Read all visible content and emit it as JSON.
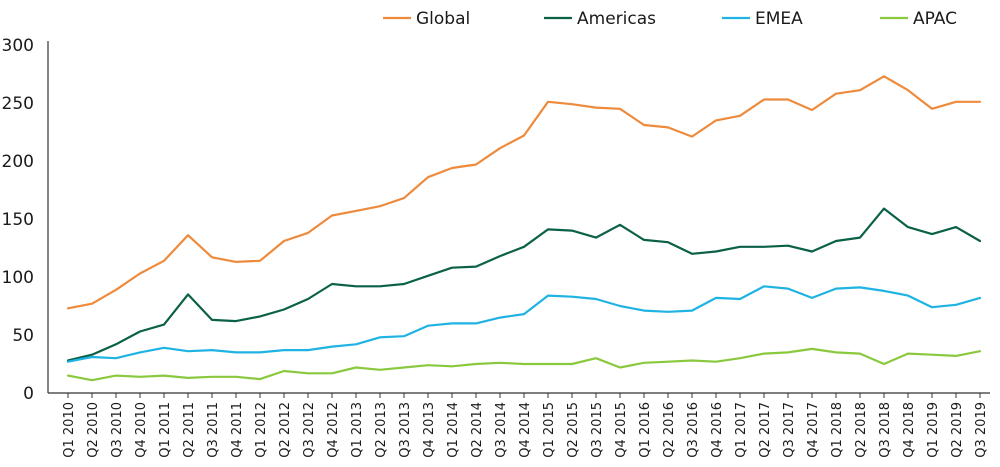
{
  "chart_data": {
    "type": "line",
    "title": "",
    "xlabel": "",
    "ylabel": "",
    "ylim": [
      0,
      300
    ],
    "yticks": [
      0,
      50,
      100,
      150,
      200,
      250,
      300
    ],
    "grid": false,
    "legend_position": "top",
    "categories": [
      "Q1 2010",
      "Q2 2010",
      "Q3 2010",
      "Q4 2010",
      "Q1 2011",
      "Q2 2011",
      "Q3 2011",
      "Q4 2011",
      "Q1 2012",
      "Q2 2012",
      "Q3 2012",
      "Q4 2012",
      "Q1 2013",
      "Q2 2013",
      "Q3 2013",
      "Q4 2013",
      "Q1 2014",
      "Q2 2014",
      "Q3 2014",
      "Q4 2014",
      "Q1 2015",
      "Q2 2015",
      "Q3 2015",
      "Q4 2015",
      "Q1 2016",
      "Q2 2016",
      "Q3 2016",
      "Q4 2016",
      "Q1 2017",
      "Q2 2017",
      "Q3 2017",
      "Q4 2017",
      "Q1 2018",
      "Q2 2018",
      "Q3 2018",
      "Q4 2018",
      "Q1 2019",
      "Q2 2019",
      "Q3 2019"
    ],
    "series": [
      {
        "name": "Global",
        "color": "#ee8a3c",
        "values": [
          73,
          77,
          89,
          103,
          114,
          136,
          117,
          113,
          114,
          131,
          138,
          153,
          157,
          161,
          168,
          186,
          194,
          197,
          211,
          222,
          251,
          249,
          246,
          245,
          231,
          229,
          221,
          235,
          239,
          253,
          253,
          244,
          258,
          261,
          273,
          261,
          245,
          251,
          251
        ]
      },
      {
        "name": "Americas",
        "color": "#0b6148",
        "values": [
          28,
          33,
          42,
          53,
          59,
          85,
          63,
          62,
          66,
          72,
          81,
          94,
          92,
          92,
          94,
          101,
          108,
          109,
          118,
          126,
          141,
          140,
          134,
          145,
          132,
          130,
          120,
          122,
          126,
          126,
          127,
          122,
          131,
          134,
          159,
          143,
          137,
          143,
          131
        ]
      },
      {
        "name": "EMEA",
        "color": "#1fb3e3",
        "values": [
          27,
          31,
          30,
          35,
          39,
          36,
          37,
          35,
          35,
          37,
          37,
          40,
          42,
          48,
          49,
          58,
          60,
          60,
          65,
          68,
          84,
          83,
          81,
          75,
          71,
          70,
          71,
          82,
          81,
          92,
          90,
          82,
          90,
          91,
          88,
          84,
          74,
          76,
          82
        ]
      },
      {
        "name": "APAC",
        "color": "#8ac83e",
        "values": [
          15,
          11,
          15,
          14,
          15,
          13,
          14,
          14,
          12,
          19,
          17,
          17,
          22,
          20,
          22,
          24,
          23,
          25,
          26,
          25,
          25,
          25,
          30,
          22,
          26,
          27,
          28,
          27,
          30,
          34,
          35,
          38,
          35,
          34,
          25,
          34,
          33,
          32,
          36
        ]
      }
    ]
  }
}
